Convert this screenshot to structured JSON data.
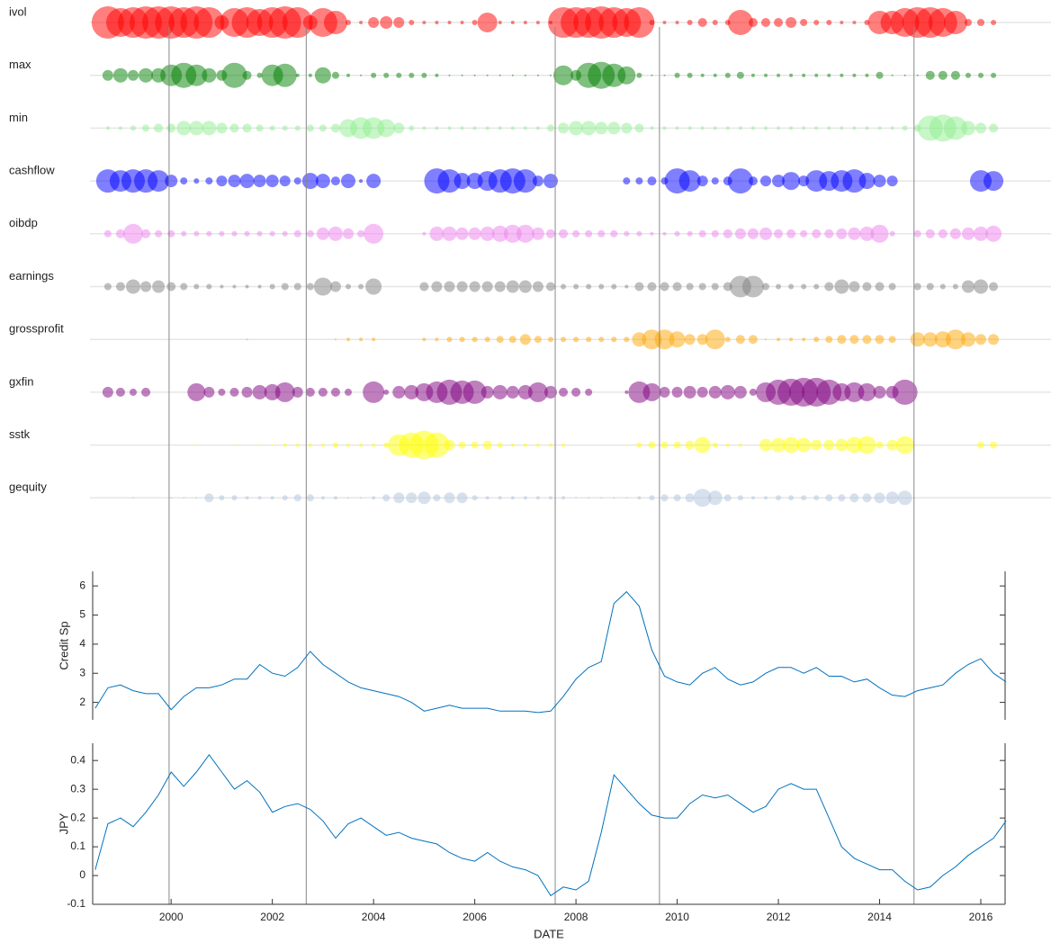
{
  "chart_data": [
    {
      "type": "bubble",
      "xlim": [
        1998.45,
        2016.48
      ],
      "reference_lines": [
        1999.96,
        2002.67,
        2007.59,
        2009.65,
        2014.68
      ],
      "x": [
        1998.75,
        1999,
        1999.25,
        1999.5,
        1999.75,
        2000,
        2000.25,
        2000.5,
        2000.75,
        2001,
        2001.25,
        2001.5,
        2001.75,
        2002,
        2002.25,
        2002.5,
        2002.75,
        2003,
        2003.25,
        2003.5,
        2003.75,
        2004,
        2004.25,
        2004.5,
        2004.75,
        2005,
        2005.25,
        2005.5,
        2005.75,
        2006,
        2006.25,
        2006.5,
        2006.75,
        2007,
        2007.25,
        2007.5,
        2007.75,
        2008,
        2008.25,
        2008.5,
        2008.75,
        2009,
        2009.25,
        2009.5,
        2009.75,
        2010,
        2010.25,
        2010.5,
        2010.75,
        2011,
        2011.25,
        2011.5,
        2011.75,
        2012,
        2012.25,
        2012.5,
        2012.75,
        2013,
        2013.25,
        2013.5,
        2013.75,
        2014,
        2014.25,
        2014.5,
        2014.75,
        2015,
        2015.25,
        2015.5,
        2015.75,
        2016,
        2016.25
      ],
      "series": [
        {
          "name": "ivol",
          "color": "#ff0000",
          "values": [
            18,
            16,
            17,
            18,
            18,
            18,
            17,
            18,
            17,
            8,
            16,
            17,
            15,
            17,
            18,
            17,
            8,
            16,
            13,
            3,
            2,
            6,
            7,
            6,
            3,
            2,
            2,
            2,
            2,
            3,
            11,
            2,
            2,
            2,
            2,
            2,
            17,
            17,
            17,
            18,
            17,
            16,
            17,
            3,
            2,
            2,
            3,
            5,
            3,
            3,
            14,
            5,
            5,
            5,
            6,
            4,
            3,
            3,
            2,
            2,
            3,
            13,
            13,
            16,
            17,
            17,
            16,
            13,
            4,
            4,
            3
          ]
        },
        {
          "name": "max",
          "color": "#008000",
          "values": [
            6,
            8,
            6,
            8,
            8,
            12,
            14,
            12,
            8,
            6,
            14,
            5,
            3,
            12,
            13,
            2,
            2,
            9,
            4,
            2,
            1,
            3,
            3,
            3,
            3,
            3,
            2,
            1,
            1,
            1,
            1,
            1,
            1,
            1,
            1,
            1,
            11,
            6,
            14,
            15,
            13,
            10,
            3,
            1,
            1,
            3,
            3,
            2,
            2,
            3,
            4,
            2,
            2,
            2,
            2,
            2,
            2,
            2,
            2,
            2,
            2,
            4,
            1,
            1,
            1,
            5,
            5,
            5,
            3,
            3,
            3
          ]
        },
        {
          "name": "min",
          "color": "#90ee90",
          "values": [
            2,
            2,
            3,
            4,
            5,
            5,
            8,
            8,
            8,
            6,
            5,
            5,
            4,
            3,
            3,
            3,
            4,
            4,
            5,
            10,
            12,
            12,
            10,
            6,
            3,
            2,
            2,
            2,
            2,
            2,
            2,
            2,
            2,
            2,
            2,
            4,
            6,
            8,
            8,
            7,
            7,
            6,
            5,
            2,
            2,
            2,
            2,
            2,
            2,
            2,
            2,
            2,
            2,
            2,
            2,
            2,
            2,
            2,
            2,
            2,
            2,
            2,
            2,
            3,
            4,
            14,
            15,
            13,
            8,
            6,
            5
          ]
        },
        {
          "name": "cashflow",
          "color": "#0000ff",
          "values": [
            13,
            12,
            13,
            13,
            12,
            7,
            4,
            3,
            4,
            6,
            7,
            8,
            7,
            7,
            6,
            4,
            9,
            8,
            5,
            8,
            2,
            8,
            null,
            null,
            null,
            null,
            14,
            13,
            9,
            9,
            11,
            13,
            14,
            13,
            6,
            8,
            null,
            null,
            null,
            null,
            null,
            4,
            4,
            5,
            4,
            14,
            12,
            6,
            4,
            5,
            14,
            5,
            6,
            7,
            10,
            6,
            12,
            11,
            12,
            13,
            9,
            7,
            6,
            null,
            null,
            null,
            null,
            null,
            null,
            12,
            11
          ]
        },
        {
          "name": "oibdp",
          "color": "#ee82ee",
          "values": [
            4,
            5,
            11,
            5,
            4,
            4,
            3,
            3,
            3,
            3,
            3,
            3,
            3,
            3,
            3,
            4,
            4,
            7,
            8,
            6,
            4,
            11,
            null,
            null,
            null,
            2,
            8,
            8,
            7,
            7,
            8,
            9,
            10,
            10,
            7,
            5,
            5,
            4,
            4,
            4,
            4,
            3,
            3,
            2,
            2,
            3,
            3,
            4,
            4,
            5,
            6,
            6,
            7,
            5,
            5,
            4,
            5,
            5,
            6,
            7,
            8,
            10,
            3,
            null,
            4,
            5,
            5,
            6,
            7,
            8,
            9
          ]
        },
        {
          "name": "earnings",
          "color": "#808080",
          "values": [
            4,
            5,
            8,
            6,
            7,
            5,
            4,
            3,
            3,
            2,
            2,
            2,
            2,
            3,
            4,
            4,
            4,
            10,
            6,
            3,
            3,
            9,
            null,
            null,
            null,
            5,
            6,
            6,
            6,
            6,
            6,
            6,
            7,
            7,
            6,
            5,
            3,
            3,
            3,
            3,
            3,
            2,
            5,
            5,
            5,
            5,
            4,
            4,
            4,
            5,
            12,
            12,
            4,
            3,
            3,
            3,
            3,
            5,
            8,
            6,
            5,
            5,
            4,
            null,
            4,
            4,
            3,
            3,
            7,
            8,
            5
          ]
        },
        {
          "name": "grossprofit",
          "color": "#ffa500",
          "values": [
            null,
            null,
            null,
            null,
            null,
            null,
            null,
            null,
            null,
            null,
            null,
            1,
            null,
            null,
            null,
            null,
            null,
            null,
            1,
            2,
            2,
            2,
            null,
            null,
            null,
            2,
            2,
            3,
            3,
            3,
            3,
            4,
            4,
            6,
            4,
            3,
            3,
            3,
            3,
            3,
            3,
            3,
            8,
            11,
            11,
            9,
            6,
            6,
            11,
            3,
            5,
            5,
            1,
            2,
            2,
            2,
            3,
            4,
            5,
            5,
            5,
            5,
            4,
            null,
            8,
            8,
            9,
            11,
            8,
            6,
            6
          ]
        },
        {
          "name": "gxfin",
          "color": "#800080",
          "values": [
            6,
            5,
            4,
            5,
            null,
            null,
            null,
            10,
            6,
            4,
            5,
            6,
            8,
            9,
            11,
            6,
            5,
            5,
            5,
            4,
            null,
            12,
            3,
            7,
            8,
            10,
            12,
            14,
            13,
            13,
            7,
            8,
            7,
            8,
            11,
            7,
            5,
            5,
            4,
            null,
            null,
            2,
            12,
            10,
            6,
            6,
            7,
            6,
            7,
            8,
            7,
            4,
            11,
            14,
            15,
            16,
            16,
            14,
            10,
            11,
            10,
            7,
            7,
            14,
            null,
            null,
            null,
            null,
            null,
            null,
            null
          ]
        },
        {
          "name": "sstk",
          "color": "#ffff00",
          "values": [
            null,
            null,
            null,
            null,
            null,
            null,
            null,
            1,
            null,
            null,
            1,
            null,
            1,
            1,
            2,
            2,
            2,
            2,
            3,
            2,
            2,
            2,
            3,
            12,
            14,
            16,
            14,
            6,
            4,
            4,
            5,
            3,
            2,
            2,
            2,
            2,
            2,
            null,
            null,
            null,
            null,
            1,
            3,
            4,
            4,
            4,
            5,
            9,
            3,
            2,
            2,
            null,
            7,
            8,
            9,
            8,
            6,
            6,
            7,
            9,
            10,
            4,
            6,
            10,
            null,
            null,
            null,
            null,
            null,
            4,
            4
          ]
        },
        {
          "name": "gequity",
          "color": "#b0c4de",
          "values": [
            null,
            null,
            1,
            null,
            null,
            1,
            1,
            1,
            5,
            3,
            3,
            2,
            2,
            2,
            3,
            4,
            4,
            2,
            2,
            1,
            1,
            2,
            4,
            6,
            6,
            7,
            4,
            6,
            6,
            3,
            2,
            2,
            2,
            2,
            2,
            2,
            2,
            1,
            1,
            1,
            1,
            1,
            2,
            3,
            4,
            4,
            5,
            10,
            8,
            4,
            3,
            2,
            2,
            3,
            3,
            3,
            3,
            4,
            4,
            5,
            5,
            6,
            7,
            8,
            null,
            null,
            null,
            null,
            null,
            null,
            null
          ]
        }
      ]
    },
    {
      "type": "line",
      "ylabel": "Credit  Sp",
      "color": "#0072bd",
      "xlim": [
        1998.45,
        2016.48
      ],
      "ylim": [
        1.4,
        6.5
      ],
      "yticks": [
        2,
        3,
        4,
        5,
        6
      ],
      "x": [
        1998.5,
        1998.75,
        1999,
        1999.25,
        1999.5,
        1999.75,
        2000,
        2000.25,
        2000.5,
        2000.75,
        2001,
        2001.25,
        2001.5,
        2001.75,
        2002,
        2002.25,
        2002.5,
        2002.75,
        2003,
        2003.25,
        2003.5,
        2003.75,
        2004,
        2004.25,
        2004.5,
        2004.75,
        2005,
        2005.25,
        2005.5,
        2005.75,
        2006,
        2006.25,
        2006.5,
        2006.75,
        2007,
        2007.25,
        2007.5,
        2007.75,
        2008,
        2008.25,
        2008.5,
        2008.75,
        2009,
        2009.25,
        2009.5,
        2009.75,
        2010,
        2010.25,
        2010.5,
        2010.75,
        2011,
        2011.25,
        2011.5,
        2011.75,
        2012,
        2012.25,
        2012.5,
        2012.75,
        2013,
        2013.25,
        2013.5,
        2013.75,
        2014,
        2014.25,
        2014.5,
        2014.75,
        2015,
        2015.25,
        2015.5,
        2015.75,
        2016,
        2016.25,
        2016.5
      ],
      "values": [
        1.8,
        2.5,
        2.6,
        2.4,
        2.3,
        2.3,
        1.75,
        2.2,
        2.5,
        2.5,
        2.6,
        2.8,
        2.8,
        3.3,
        3.0,
        2.9,
        3.2,
        3.75,
        3.3,
        3.0,
        2.7,
        2.5,
        2.4,
        2.3,
        2.2,
        2.0,
        1.7,
        1.8,
        1.9,
        1.8,
        1.8,
        1.8,
        1.7,
        1.7,
        1.7,
        1.65,
        1.7,
        2.2,
        2.8,
        3.2,
        3.4,
        5.4,
        5.8,
        5.3,
        3.8,
        2.9,
        2.7,
        2.6,
        3.0,
        3.2,
        2.8,
        2.6,
        2.7,
        3.0,
        3.2,
        3.2,
        3.0,
        3.2,
        2.9,
        2.9,
        2.7,
        2.8,
        2.5,
        2.25,
        2.2,
        2.4,
        2.5,
        2.6,
        3.0,
        3.3,
        3.5,
        3.0,
        2.7
      ]
    },
    {
      "type": "line",
      "ylabel": "JPY",
      "xlabel": "DATE",
      "color": "#0072bd",
      "xlim": [
        1998.45,
        2016.48
      ],
      "ylim": [
        -0.1,
        0.46
      ],
      "yticks": [
        -0.1,
        0,
        0.1,
        0.2,
        0.3,
        0.4
      ],
      "xticks": [
        2000,
        2002,
        2004,
        2006,
        2008,
        2010,
        2012,
        2014,
        2016
      ],
      "x": [
        1998.5,
        1998.75,
        1999,
        1999.25,
        1999.5,
        1999.75,
        2000,
        2000.25,
        2000.5,
        2000.75,
        2001,
        2001.25,
        2001.5,
        2001.75,
        2002,
        2002.25,
        2002.5,
        2002.75,
        2003,
        2003.25,
        2003.5,
        2003.75,
        2004,
        2004.25,
        2004.5,
        2004.75,
        2005,
        2005.25,
        2005.5,
        2005.75,
        2006,
        2006.25,
        2006.5,
        2006.75,
        2007,
        2007.25,
        2007.5,
        2007.75,
        2008,
        2008.25,
        2008.5,
        2008.75,
        2009,
        2009.25,
        2009.5,
        2009.75,
        2010,
        2010.25,
        2010.5,
        2010.75,
        2011,
        2011.25,
        2011.5,
        2011.75,
        2012,
        2012.25,
        2012.5,
        2012.75,
        2013,
        2013.25,
        2013.5,
        2013.75,
        2014,
        2014.25,
        2014.5,
        2014.75,
        2015,
        2015.25,
        2015.5,
        2015.75,
        2016,
        2016.25,
        2016.5
      ],
      "values": [
        0.02,
        0.18,
        0.2,
        0.17,
        0.22,
        0.28,
        0.36,
        0.31,
        0.36,
        0.42,
        0.36,
        0.3,
        0.33,
        0.29,
        0.22,
        0.24,
        0.25,
        0.23,
        0.19,
        0.13,
        0.18,
        0.2,
        0.17,
        0.14,
        0.15,
        0.13,
        0.12,
        0.11,
        0.08,
        0.06,
        0.05,
        0.08,
        0.05,
        0.03,
        0.02,
        0.0,
        -0.07,
        -0.04,
        -0.05,
        -0.02,
        0.15,
        0.35,
        0.3,
        0.25,
        0.21,
        0.2,
        0.2,
        0.25,
        0.28,
        0.27,
        0.28,
        0.25,
        0.22,
        0.24,
        0.3,
        0.32,
        0.3,
        0.3,
        0.2,
        0.1,
        0.06,
        0.04,
        0.02,
        0.02,
        -0.02,
        -0.05,
        -0.04,
        0.0,
        0.03,
        0.07,
        0.1,
        0.13,
        0.19
      ]
    }
  ]
}
